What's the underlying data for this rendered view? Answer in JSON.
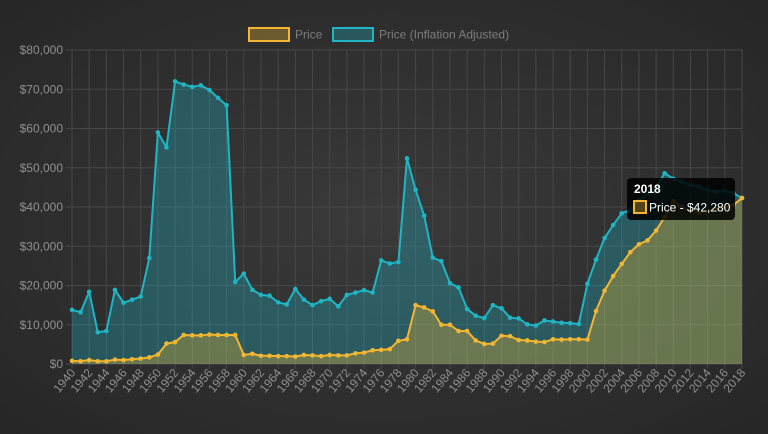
{
  "chart_data": {
    "type": "area",
    "x": [
      1940,
      1941,
      1942,
      1943,
      1944,
      1945,
      1946,
      1947,
      1948,
      1949,
      1950,
      1951,
      1952,
      1953,
      1954,
      1955,
      1956,
      1957,
      1958,
      1959,
      1960,
      1961,
      1962,
      1963,
      1964,
      1965,
      1966,
      1967,
      1968,
      1969,
      1970,
      1971,
      1972,
      1973,
      1974,
      1975,
      1976,
      1977,
      1978,
      1979,
      1980,
      1981,
      1982,
      1983,
      1984,
      1985,
      1986,
      1987,
      1988,
      1989,
      1990,
      1991,
      1992,
      1993,
      1994,
      1995,
      1996,
      1997,
      1998,
      1999,
      2000,
      2001,
      2002,
      2003,
      2004,
      2005,
      2006,
      2007,
      2008,
      2009,
      2010,
      2011,
      2012,
      2013,
      2014,
      2015,
      2016,
      2017,
      2018
    ],
    "x_tick_labels": [
      "1940",
      "1942",
      "1944",
      "1946",
      "1948",
      "1950",
      "1952",
      "1954",
      "1956",
      "1958",
      "1960",
      "1962",
      "1964",
      "1966",
      "1968",
      "1970",
      "1972",
      "1974",
      "1976",
      "1978",
      "1980",
      "1982",
      "1984",
      "1986",
      "1988",
      "1990",
      "1992",
      "1994",
      "1996",
      "1998",
      "2000",
      "2002",
      "2004",
      "2006",
      "2008",
      "2010",
      "2012",
      "2014",
      "2016",
      "2018"
    ],
    "y_tick_labels": [
      "$0",
      "$10,000",
      "$20,000",
      "$30,000",
      "$40,000",
      "$50,000",
      "$60,000",
      "$70,000",
      "$80,000"
    ],
    "ylim": [
      0,
      80000
    ],
    "grid": true,
    "legend_position": "top",
    "series": [
      {
        "name": "Price",
        "color": "#f2b632",
        "fill": "rgba(242,182,50,0.32)",
        "values": [
          800,
          700,
          1000,
          700,
          700,
          1100,
          1000,
          1200,
          1400,
          1700,
          2400,
          5200,
          5600,
          7400,
          7300,
          7300,
          7500,
          7400,
          7400,
          7400,
          2300,
          2600,
          2100,
          2100,
          2000,
          2000,
          1900,
          2300,
          2200,
          2000,
          2300,
          2200,
          2200,
          2700,
          2900,
          3500,
          3600,
          3800,
          5900,
          6300,
          15000,
          14400,
          13400,
          10000,
          10000,
          8400,
          8400,
          6000,
          5100,
          5200,
          7200,
          7100,
          6100,
          6000,
          5700,
          5600,
          6300,
          6200,
          6300,
          6300,
          6200,
          13500,
          18700,
          22400,
          25500,
          28500,
          30500,
          31500,
          34000,
          37500,
          41500,
          40000,
          39000,
          38500,
          39000,
          39500,
          40000,
          40500,
          42280
        ]
      },
      {
        "name": "Price (Inflation Adjusted)",
        "color": "#1fb5c4",
        "fill": "rgba(31,181,196,0.32)",
        "values": [
          13800,
          13200,
          18400,
          8100,
          8400,
          18900,
          15600,
          16400,
          17200,
          27000,
          59000,
          55200,
          72000,
          71200,
          70600,
          71000,
          69800,
          67800,
          65900,
          20900,
          23000,
          18900,
          17600,
          17400,
          15700,
          15200,
          19100,
          16400,
          15000,
          16000,
          16600,
          14700,
          17600,
          18200,
          18800,
          18200,
          26400,
          25600,
          26000,
          52400,
          44400,
          37800,
          27100,
          26200,
          20600,
          19500,
          14000,
          12300,
          11700,
          15000,
          14200,
          11800,
          11600,
          10100,
          9800,
          11100,
          10800,
          10500,
          10400,
          10200,
          20400,
          26600,
          32100,
          35400,
          38400,
          39300,
          41600,
          43600,
          45100,
          48600,
          47200,
          46400,
          45600,
          45200,
          44300,
          43900,
          44100,
          43500,
          42280
        ]
      }
    ],
    "tooltip": {
      "title": "2018",
      "label": "Price - $42,280"
    }
  }
}
